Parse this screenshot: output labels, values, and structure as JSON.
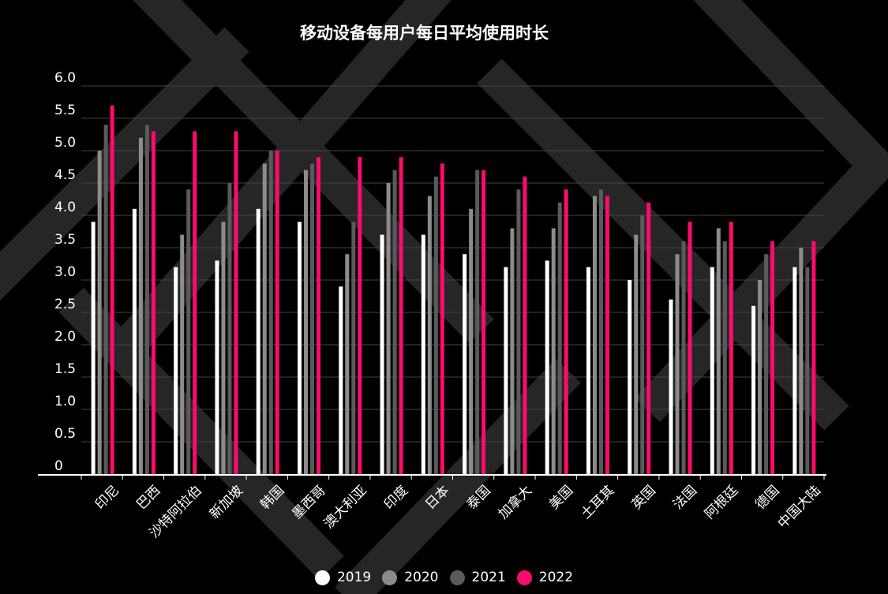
{
  "chart_data": {
    "type": "bar",
    "title": "移动设备每用户每日平均使用时长",
    "categories": [
      "印尼",
      "巴西",
      "沙特阿拉伯",
      "新加坡",
      "韩国",
      "墨西哥",
      "澳大利亚",
      "印度",
      "日本",
      "泰国",
      "加拿大",
      "美国",
      "土耳其",
      "英国",
      "法国",
      "阿根廷",
      "德国",
      "中国大陆"
    ],
    "series": [
      {
        "name": "2019",
        "color": "#ffffff",
        "values": [
          3.9,
          4.1,
          3.2,
          3.3,
          4.1,
          3.9,
          2.9,
          3.7,
          3.7,
          3.4,
          3.2,
          3.3,
          3.2,
          3.0,
          2.7,
          3.2,
          2.6,
          3.2
        ]
      },
      {
        "name": "2020",
        "color": "#8c8c8c",
        "values": [
          5.0,
          5.2,
          3.7,
          3.9,
          4.8,
          4.7,
          3.4,
          4.5,
          4.3,
          4.1,
          3.8,
          3.8,
          4.3,
          3.7,
          3.4,
          3.8,
          3.0,
          3.5
        ]
      },
      {
        "name": "2021",
        "color": "#5a5a5a",
        "values": [
          5.4,
          5.4,
          4.4,
          4.5,
          5.0,
          4.8,
          3.9,
          4.7,
          4.6,
          4.7,
          4.4,
          4.2,
          4.4,
          4.0,
          3.6,
          3.6,
          3.4,
          3.2
        ]
      },
      {
        "name": "2022",
        "color": "#ff0a6e",
        "values": [
          5.7,
          5.3,
          5.3,
          5.3,
          5.0,
          4.9,
          4.9,
          4.9,
          4.8,
          4.7,
          4.6,
          4.4,
          4.3,
          4.2,
          3.9,
          3.9,
          3.6,
          3.6
        ]
      }
    ],
    "ylim": [
      0,
      6.0
    ],
    "yticks": [
      "0",
      "0.5",
      "1.0",
      "1.5",
      "2.0",
      "2.5",
      "3.0",
      "3.5",
      "4.0",
      "4.5",
      "5.0",
      "5.5",
      "6.0"
    ],
    "grid": true,
    "legend_position": "bottom"
  }
}
